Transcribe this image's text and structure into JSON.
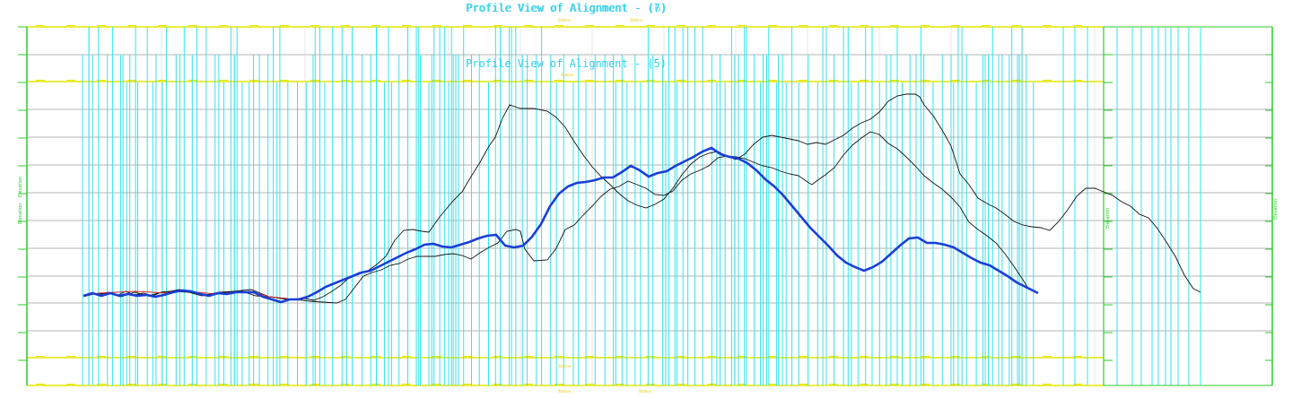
{
  "titles": {
    "view_7": "Profile View of Alignment - (7)",
    "view_6": "Profile View of Alignment - (6)",
    "view_5": "Profile View of  Alignment - (5)"
  },
  "axis_labels": {
    "station": "Station",
    "elevation": "Elevation"
  },
  "colors": {
    "background": "#ffffff",
    "grid": "#b4b4b4",
    "station_lines": "#33e5ee",
    "frame_yellow": "#e6e600",
    "frame_green": "#2ecc2e",
    "title": "#32cfe6",
    "profile_black": "#111111",
    "profile_blue": "#1a3fd6",
    "profile_red": "#d22424"
  },
  "icons": {
    "profile_icon": "polyline"
  }
}
